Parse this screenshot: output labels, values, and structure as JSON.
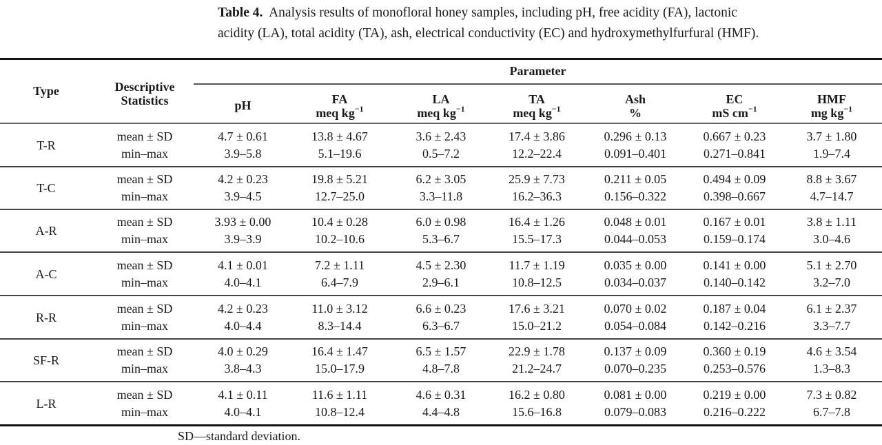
{
  "caption": {
    "label": "Table 4.",
    "line1": "Analysis results of monofloral honey samples, including pH, free acidity (FA), lactonic",
    "line2": "acidity (LA), total acidity (TA), ash, electrical conductivity (EC) and hydroxymethylfurfural (HMF)."
  },
  "header": {
    "type": "Type",
    "desc_line1": "Descriptive",
    "desc_line2": "Statistics",
    "group": "Parameter",
    "columns": [
      {
        "name": "pH",
        "unit": "",
        "unit_sup": ""
      },
      {
        "name": "FA",
        "unit": "meq kg",
        "unit_sup": "−1"
      },
      {
        "name": "LA",
        "unit": "meq kg",
        "unit_sup": "−1"
      },
      {
        "name": "TA",
        "unit": "meq kg",
        "unit_sup": "−1"
      },
      {
        "name": "Ash",
        "unit": "%",
        "unit_sup": ""
      },
      {
        "name": "EC",
        "unit": "mS cm",
        "unit_sup": "−1"
      },
      {
        "name": "HMF",
        "unit": "mg kg",
        "unit_sup": "−1"
      }
    ]
  },
  "stat_labels": {
    "mean": "mean ± SD",
    "range": "min–max"
  },
  "rows": [
    {
      "type": "T-R",
      "mean": [
        "4.7 ± 0.61",
        "13.8 ± 4.67",
        "3.6 ± 2.43",
        "17.4 ± 3.86",
        "0.296 ± 0.13",
        "0.667 ± 0.23",
        "3.7 ± 1.80"
      ],
      "range": [
        "3.9–5.8",
        "5.1–19.6",
        "0.5–7.2",
        "12.2–22.4",
        "0.091–0.401",
        "0.271–0.841",
        "1.9–7.4"
      ]
    },
    {
      "type": "T-C",
      "mean": [
        "4.2 ± 0.23",
        "19.8 ± 5.21",
        "6.2 ± 3.05",
        "25.9 ± 7.73",
        "0.211 ± 0.05",
        "0.494 ± 0.09",
        "8.8 ± 3.67"
      ],
      "range": [
        "3.9–4.5",
        "12.7–25.0",
        "3.3–11.8",
        "16.2–36.3",
        "0.156–0.322",
        "0.398–0.667",
        "4.7–14.7"
      ]
    },
    {
      "type": "A-R",
      "mean": [
        "3.93 ± 0.00",
        "10.4 ± 0.28",
        "6.0 ± 0.98",
        "16.4 ± 1.26",
        "0.048 ± 0.01",
        "0.167 ± 0.01",
        "3.8 ± 1.11"
      ],
      "range": [
        "3.9–3.9",
        "10.2–10.6",
        "5.3–6.7",
        "15.5–17.3",
        "0.044–0.053",
        "0.159–0.174",
        "3.0–4.6"
      ]
    },
    {
      "type": "A-C",
      "mean": [
        "4.1 ± 0.01",
        "7.2 ± 1.11",
        "4.5 ± 2.30",
        "11.7 ± 1.19",
        "0.035 ± 0.00",
        "0.141 ± 0.00",
        "5.1 ± 2.70"
      ],
      "range": [
        "4.0–4.1",
        "6.4–7.9",
        "2.9–6.1",
        "10.8–12.5",
        "0.034–0.037",
        "0.140–0.142",
        "3.2–7.0"
      ]
    },
    {
      "type": "R-R",
      "mean": [
        "4.2 ± 0.23",
        "11.0 ± 3.12",
        "6.6 ± 0.23",
        "17.6 ± 3.21",
        "0.070 ± 0.02",
        "0.187 ± 0.04",
        "6.1 ± 2.37"
      ],
      "range": [
        "4.0–4.4",
        "8.3–14.4",
        "6.3–6.7",
        "15.0–21.2",
        "0.054–0.084",
        "0.142–0.216",
        "3.3–7.7"
      ]
    },
    {
      "type": "SF-R",
      "mean": [
        "4.0 ± 0.29",
        "16.4 ± 1.47",
        "6.5 ± 1.57",
        "22.9 ± 1.78",
        "0.137 ± 0.09",
        "0.360 ± 0.19",
        "4.6 ± 3.54"
      ],
      "range": [
        "3.8–4.3",
        "15.0–17.9",
        "4.8–7.8",
        "21.2–24.7",
        "0.070–0.235",
        "0.253–0.576",
        "1.3–8.3"
      ]
    },
    {
      "type": "L-R",
      "mean": [
        "4.1 ± 0.11",
        "11.6 ± 1.11",
        "4.6 ± 0.31",
        "16.2 ± 0.80",
        "0.081 ± 0.00",
        "0.219 ± 0.00",
        "7.3 ± 0.82"
      ],
      "range": [
        "4.0–4.1",
        "10.8–12.4",
        "4.4–4.8",
        "15.6–16.8",
        "0.079–0.083",
        "0.216–0.222",
        "6.7–7.8"
      ]
    }
  ],
  "footnote": "SD—standard deviation."
}
